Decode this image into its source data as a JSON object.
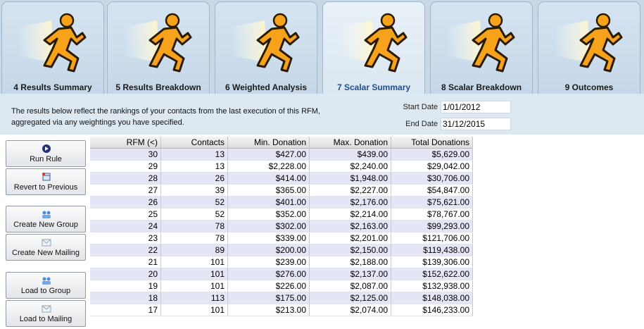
{
  "tabs": [
    {
      "label": "4 Results Summary",
      "active": false
    },
    {
      "label": "5 Results Breakdown",
      "active": false
    },
    {
      "label": "6 Weighted Analysis",
      "active": false
    },
    {
      "label": "7 Scalar Summary",
      "active": true
    },
    {
      "label": "8 Scalar Breakdown",
      "active": false
    },
    {
      "label": "9 Outcomes",
      "active": false
    }
  ],
  "tab_icon": "running-man-icon",
  "description": {
    "line1": "The results below reflect the rankings of your contacts from the last execution of this RFM,",
    "line2": "aggregated via any weightings you have specified."
  },
  "dates": {
    "start_label": "Start Date",
    "start_value": "1/01/2012",
    "end_label": "End Date",
    "end_value": "31/12/2015"
  },
  "buttons": {
    "run_rule": "Run Rule",
    "revert": "Revert to Previous",
    "create_group": "Create New Group",
    "create_mailing": "Create New Mailing",
    "load_group": "Load to Group",
    "load_mailing": "Load to Mailing"
  },
  "table": {
    "headers": [
      "RFM (<)",
      "Contacts",
      "Min. Donation",
      "Max. Donation",
      "Total Donations"
    ],
    "rows": [
      [
        "30",
        "13",
        "$427.00",
        "$439.00",
        "$5,629.00"
      ],
      [
        "29",
        "13",
        "$2,228.00",
        "$2,240.00",
        "$29,042.00"
      ],
      [
        "28",
        "26",
        "$414.00",
        "$1,948.00",
        "$30,706.00"
      ],
      [
        "27",
        "39",
        "$365.00",
        "$2,227.00",
        "$54,847.00"
      ],
      [
        "26",
        "52",
        "$401.00",
        "$2,176.00",
        "$75,621.00"
      ],
      [
        "25",
        "52",
        "$352.00",
        "$2,214.00",
        "$78,767.00"
      ],
      [
        "24",
        "78",
        "$302.00",
        "$2,163.00",
        "$99,293.00"
      ],
      [
        "23",
        "78",
        "$339.00",
        "$2,201.00",
        "$121,706.00"
      ],
      [
        "22",
        "89",
        "$200.00",
        "$2,150.00",
        "$119,438.00"
      ],
      [
        "21",
        "101",
        "$239.00",
        "$2,188.00",
        "$139,306.00"
      ],
      [
        "20",
        "101",
        "$276.00",
        "$2,137.00",
        "$152,622.00"
      ],
      [
        "19",
        "101",
        "$226.00",
        "$2,087.00",
        "$132,938.00"
      ],
      [
        "18",
        "113",
        "$175.00",
        "$2,125.00",
        "$148,038.00"
      ],
      [
        "17",
        "101",
        "$213.00",
        "$2,074.00",
        "$146,233.00"
      ]
    ]
  }
}
